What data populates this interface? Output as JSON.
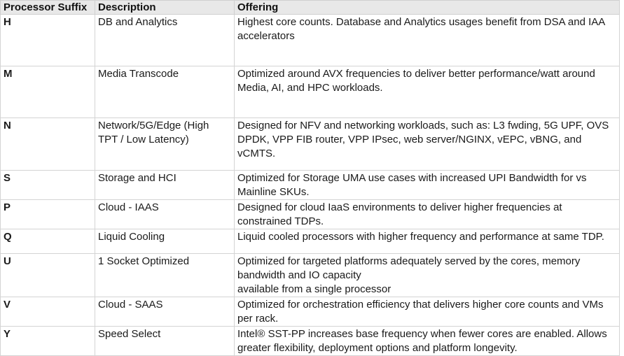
{
  "table": {
    "headers": [
      "Processor Suffix",
      "Description",
      "Offering"
    ],
    "rows": [
      {
        "suffix": "H",
        "description": "DB and Analytics",
        "offering": "Highest core counts. Database and Analytics usages benefit from DSA and IAA accelerators"
      },
      {
        "suffix": "M",
        "description": "Media Transcode",
        "offering": "Optimized around AVX frequencies to deliver better performance/watt around Media, AI, and HPC workloads."
      },
      {
        "suffix": "N",
        "description": "Network/5G/Edge (High TPT / Low Latency)",
        "offering": "Designed for NFV and networking workloads, such as: L3 fwding, 5G UPF, OVS DPDK, VPP FIB router, VPP IPsec, web server/NGINX, vEPC, vBNG, and vCMTS."
      },
      {
        "suffix": "S",
        "description": "Storage and HCI",
        "offering": "Optimized for Storage UMA use cases with increased UPI Bandwidth for vs Mainline SKUs."
      },
      {
        "suffix": "P",
        "description": "Cloud - IAAS",
        "offering": "Designed for cloud IaaS environments to deliver higher frequencies at constrained TDPs."
      },
      {
        "suffix": "Q",
        "description": "Liquid Cooling",
        "offering": "Liquid cooled processors with higher frequency and performance at same TDP."
      },
      {
        "suffix": "U",
        "description": "1 Socket Optimized",
        "offering": "Optimized for targeted platforms adequately served by the cores, memory bandwidth and IO capacity\navailable from a single processor"
      },
      {
        "suffix": "V",
        "description": "Cloud - SAAS",
        "offering": "Optimized for orchestration efficiency that delivers higher core counts and VMs per rack."
      },
      {
        "suffix": "Y",
        "description": "Speed Select",
        "offering": "Intel® SST-PP increases base frequency when fewer cores are enabled. Allows greater flexibility, deployment options and platform longevity."
      }
    ]
  }
}
